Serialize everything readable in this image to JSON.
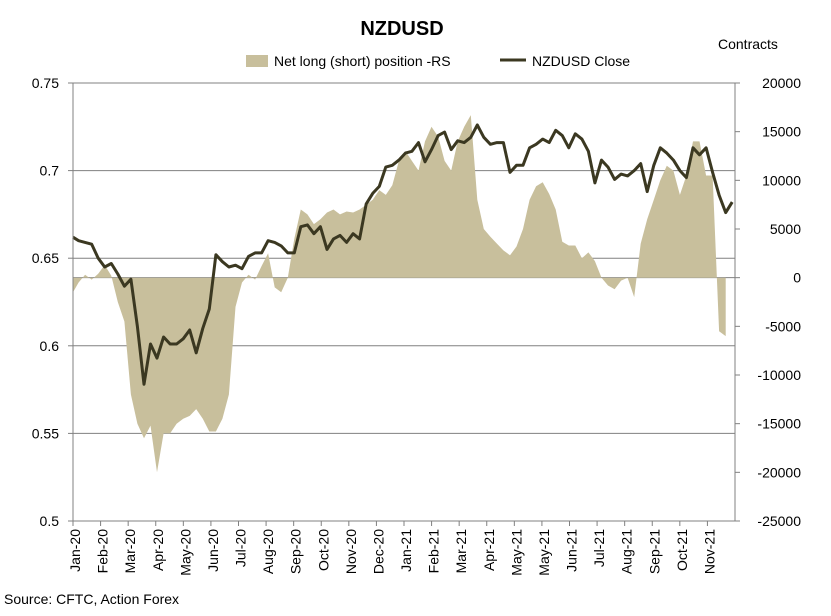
{
  "chart_data": {
    "type": "area+line",
    "title": "NZDUSD",
    "right_axis_title": "Contracts",
    "source": "Source: CFTC, Action Forex",
    "legend": {
      "position": "top-center",
      "entries": [
        {
          "name": "Net long (short) position -RS",
          "kind": "area",
          "color": "#c8bf9c"
        },
        {
          "name": "NZDUSD Close",
          "kind": "line",
          "color": "#3b3821"
        }
      ]
    },
    "left_axis": {
      "min": 0.5,
      "max": 0.75,
      "ticks": [
        "0.5",
        "0.55",
        "0.6",
        "0.65",
        "0.7",
        "0.75"
      ]
    },
    "right_axis": {
      "min": -25000,
      "max": 20000,
      "ticks": [
        "-25000",
        "-20000",
        "-15000",
        "-10000",
        "-5000",
        "0",
        "5000",
        "10000",
        "15000",
        "20000"
      ]
    },
    "x_axis": {
      "start": "2020-01-01",
      "end": "2021-12-10",
      "tick_labels": [
        "Jan-20",
        "Feb-20",
        "Mar-20",
        "Apr-20",
        "May-20",
        "Jun-20",
        "Jul-20",
        "Aug-20",
        "Sep-20",
        "Oct-20",
        "Nov-20",
        "Dec-20",
        "Jan-21",
        "Feb-21",
        "Mar-21",
        "Apr-21",
        "May-21",
        "May-21",
        "Jun-21",
        "Jul-21",
        "Aug-21",
        "Sep-21",
        "Oct-21",
        "Nov-21"
      ]
    },
    "gridlines": true,
    "colors": {
      "area": "#c8bf9c",
      "line": "#3b3821",
      "grid": "#808080",
      "axis": "#808080"
    },
    "series": [
      {
        "name": "Net long (short) position -RS",
        "axis": "right",
        "points": [
          [
            "2020-01-01",
            -1500
          ],
          [
            "2020-01-07",
            -500
          ],
          [
            "2020-01-14",
            300
          ],
          [
            "2020-01-21",
            -200
          ],
          [
            "2020-01-28",
            400
          ],
          [
            "2020-02-04",
            1300
          ],
          [
            "2020-02-11",
            200
          ],
          [
            "2020-02-18",
            -2500
          ],
          [
            "2020-02-25",
            -4500
          ],
          [
            "2020-03-03",
            -12000
          ],
          [
            "2020-03-10",
            -15000
          ],
          [
            "2020-03-17",
            -16500
          ],
          [
            "2020-03-24",
            -15200
          ],
          [
            "2020-03-31",
            -20000
          ],
          [
            "2020-04-07",
            -16000
          ],
          [
            "2020-04-14",
            -16000
          ],
          [
            "2020-04-21",
            -15000
          ],
          [
            "2020-04-28",
            -14500
          ],
          [
            "2020-05-05",
            -14200
          ],
          [
            "2020-05-12",
            -13500
          ],
          [
            "2020-05-19",
            -14500
          ],
          [
            "2020-05-26",
            -15800
          ],
          [
            "2020-06-02",
            -15800
          ],
          [
            "2020-06-09",
            -14500
          ],
          [
            "2020-06-16",
            -12000
          ],
          [
            "2020-06-23",
            -3000
          ],
          [
            "2020-06-30",
            -500
          ],
          [
            "2020-07-07",
            300
          ],
          [
            "2020-07-14",
            -200
          ],
          [
            "2020-07-21",
            1200
          ],
          [
            "2020-07-28",
            2500
          ],
          [
            "2020-08-04",
            -1000
          ],
          [
            "2020-08-11",
            -1500
          ],
          [
            "2020-08-18",
            0
          ],
          [
            "2020-08-25",
            4000
          ],
          [
            "2020-09-01",
            7000
          ],
          [
            "2020-09-08",
            6500
          ],
          [
            "2020-09-15",
            5500
          ],
          [
            "2020-09-22",
            6000
          ],
          [
            "2020-09-29",
            6700
          ],
          [
            "2020-10-06",
            7000
          ],
          [
            "2020-10-13",
            6500
          ],
          [
            "2020-10-20",
            6800
          ],
          [
            "2020-10-27",
            6700
          ],
          [
            "2020-11-03",
            7000
          ],
          [
            "2020-11-10",
            7500
          ],
          [
            "2020-11-17",
            8000
          ],
          [
            "2020-11-24",
            9000
          ],
          [
            "2020-12-01",
            8500
          ],
          [
            "2020-12-08",
            9500
          ],
          [
            "2020-12-15",
            12000
          ],
          [
            "2020-12-22",
            13000
          ],
          [
            "2020-12-29",
            12000
          ],
          [
            "2021-01-05",
            11000
          ],
          [
            "2021-01-12",
            14000
          ],
          [
            "2021-01-19",
            15500
          ],
          [
            "2021-01-26",
            14500
          ],
          [
            "2021-02-02",
            12000
          ],
          [
            "2021-02-09",
            11000
          ],
          [
            "2021-02-16",
            14000
          ],
          [
            "2021-02-23",
            15500
          ],
          [
            "2021-03-02",
            16700
          ],
          [
            "2021-03-09",
            8000
          ],
          [
            "2021-03-16",
            5000
          ],
          [
            "2021-03-23",
            4200
          ],
          [
            "2021-03-30",
            3500
          ],
          [
            "2021-04-06",
            2800
          ],
          [
            "2021-04-13",
            2300
          ],
          [
            "2021-04-20",
            3200
          ],
          [
            "2021-04-27",
            5000
          ],
          [
            "2021-05-04",
            8000
          ],
          [
            "2021-05-11",
            9400
          ],
          [
            "2021-05-18",
            9800
          ],
          [
            "2021-05-25",
            8600
          ],
          [
            "2021-06-01",
            7000
          ],
          [
            "2021-06-08",
            3700
          ],
          [
            "2021-06-15",
            3300
          ],
          [
            "2021-06-22",
            3300
          ],
          [
            "2021-06-29",
            2000
          ],
          [
            "2021-07-06",
            2600
          ],
          [
            "2021-07-13",
            1700
          ],
          [
            "2021-07-20",
            0
          ],
          [
            "2021-07-27",
            -800
          ],
          [
            "2021-08-03",
            -1200
          ],
          [
            "2021-08-10",
            -300
          ],
          [
            "2021-08-17",
            0
          ],
          [
            "2021-08-24",
            -2000
          ],
          [
            "2021-08-31",
            3500
          ],
          [
            "2021-09-07",
            6000
          ],
          [
            "2021-09-14",
            8000
          ],
          [
            "2021-09-21",
            10000
          ],
          [
            "2021-09-28",
            11500
          ],
          [
            "2021-10-05",
            11000
          ],
          [
            "2021-10-12",
            8500
          ],
          [
            "2021-10-19",
            10500
          ],
          [
            "2021-10-26",
            14000
          ],
          [
            "2021-11-02",
            14000
          ],
          [
            "2021-11-09",
            10500
          ],
          [
            "2021-11-16",
            10500
          ],
          [
            "2021-11-23",
            -5500
          ],
          [
            "2021-11-30",
            -6000
          ]
        ]
      },
      {
        "name": "NZDUSD Close",
        "axis": "left",
        "points": [
          [
            "2020-01-01",
            0.662
          ],
          [
            "2020-01-07",
            0.66
          ],
          [
            "2020-01-14",
            0.659
          ],
          [
            "2020-01-21",
            0.658
          ],
          [
            "2020-01-28",
            0.65
          ],
          [
            "2020-02-04",
            0.645
          ],
          [
            "2020-02-11",
            0.647
          ],
          [
            "2020-02-18",
            0.641
          ],
          [
            "2020-02-25",
            0.634
          ],
          [
            "2020-03-03",
            0.638
          ],
          [
            "2020-03-10",
            0.611
          ],
          [
            "2020-03-17",
            0.578
          ],
          [
            "2020-03-24",
            0.601
          ],
          [
            "2020-03-31",
            0.593
          ],
          [
            "2020-04-07",
            0.605
          ],
          [
            "2020-04-14",
            0.601
          ],
          [
            "2020-04-21",
            0.601
          ],
          [
            "2020-04-28",
            0.604
          ],
          [
            "2020-05-05",
            0.609
          ],
          [
            "2020-05-12",
            0.596
          ],
          [
            "2020-05-19",
            0.61
          ],
          [
            "2020-05-26",
            0.621
          ],
          [
            "2020-06-02",
            0.652
          ],
          [
            "2020-06-09",
            0.648
          ],
          [
            "2020-06-16",
            0.645
          ],
          [
            "2020-06-23",
            0.646
          ],
          [
            "2020-06-30",
            0.644
          ],
          [
            "2020-07-07",
            0.651
          ],
          [
            "2020-07-14",
            0.653
          ],
          [
            "2020-07-21",
            0.653
          ],
          [
            "2020-07-28",
            0.66
          ],
          [
            "2020-08-04",
            0.659
          ],
          [
            "2020-08-11",
            0.657
          ],
          [
            "2020-08-18",
            0.653
          ],
          [
            "2020-08-25",
            0.653
          ],
          [
            "2020-09-01",
            0.668
          ],
          [
            "2020-09-08",
            0.669
          ],
          [
            "2020-09-15",
            0.664
          ],
          [
            "2020-09-22",
            0.668
          ],
          [
            "2020-09-29",
            0.655
          ],
          [
            "2020-10-06",
            0.661
          ],
          [
            "2020-10-13",
            0.663
          ],
          [
            "2020-10-20",
            0.659
          ],
          [
            "2020-10-27",
            0.664
          ],
          [
            "2020-11-03",
            0.661
          ],
          [
            "2020-11-10",
            0.681
          ],
          [
            "2020-11-17",
            0.687
          ],
          [
            "2020-11-24",
            0.691
          ],
          [
            "2020-12-01",
            0.702
          ],
          [
            "2020-12-08",
            0.703
          ],
          [
            "2020-12-15",
            0.706
          ],
          [
            "2020-12-22",
            0.71
          ],
          [
            "2020-12-29",
            0.711
          ],
          [
            "2021-01-05",
            0.716
          ],
          [
            "2021-01-12",
            0.705
          ],
          [
            "2021-01-19",
            0.712
          ],
          [
            "2021-01-26",
            0.72
          ],
          [
            "2021-02-02",
            0.722
          ],
          [
            "2021-02-09",
            0.712
          ],
          [
            "2021-02-16",
            0.717
          ],
          [
            "2021-02-23",
            0.716
          ],
          [
            "2021-03-02",
            0.719
          ],
          [
            "2021-03-09",
            0.726
          ],
          [
            "2021-03-16",
            0.719
          ],
          [
            "2021-03-23",
            0.715
          ],
          [
            "2021-03-30",
            0.716
          ],
          [
            "2021-04-06",
            0.716
          ],
          [
            "2021-04-13",
            0.699
          ],
          [
            "2021-04-20",
            0.703
          ],
          [
            "2021-04-27",
            0.703
          ],
          [
            "2021-05-04",
            0.713
          ],
          [
            "2021-05-11",
            0.715
          ],
          [
            "2021-05-18",
            0.718
          ],
          [
            "2021-05-25",
            0.716
          ],
          [
            "2021-06-01",
            0.723
          ],
          [
            "2021-06-08",
            0.72
          ],
          [
            "2021-06-15",
            0.713
          ],
          [
            "2021-06-22",
            0.721
          ],
          [
            "2021-06-29",
            0.718
          ],
          [
            "2021-07-06",
            0.711
          ],
          [
            "2021-07-13",
            0.693
          ],
          [
            "2021-07-20",
            0.706
          ],
          [
            "2021-07-27",
            0.702
          ],
          [
            "2021-08-03",
            0.695
          ],
          [
            "2021-08-10",
            0.698
          ],
          [
            "2021-08-17",
            0.697
          ],
          [
            "2021-08-24",
            0.7
          ],
          [
            "2021-08-31",
            0.704
          ],
          [
            "2021-09-07",
            0.688
          ],
          [
            "2021-09-14",
            0.703
          ],
          [
            "2021-09-21",
            0.713
          ],
          [
            "2021-09-28",
            0.71
          ],
          [
            "2021-10-05",
            0.706
          ],
          [
            "2021-10-12",
            0.7
          ],
          [
            "2021-10-19",
            0.696
          ],
          [
            "2021-10-26",
            0.713
          ],
          [
            "2021-11-02",
            0.709
          ],
          [
            "2021-11-09",
            0.713
          ],
          [
            "2021-11-16",
            0.699
          ],
          [
            "2021-11-23",
            0.686
          ],
          [
            "2021-11-30",
            0.676
          ],
          [
            "2021-12-07",
            0.682
          ]
        ]
      }
    ]
  }
}
